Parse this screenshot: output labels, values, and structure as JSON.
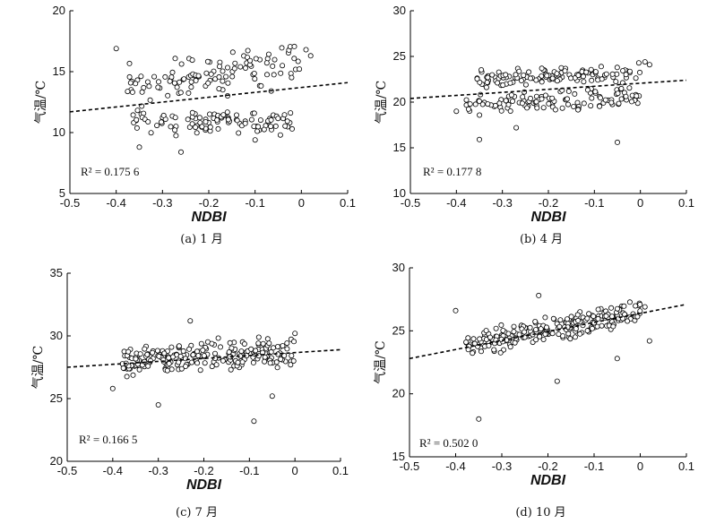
{
  "chart_data": [
    {
      "type": "scatter",
      "caption": "(a) 1 月",
      "xlabel": "NDBI",
      "ylabel": "气温/℃",
      "xlim": [
        -0.5,
        0.1
      ],
      "ylim": [
        5,
        20
      ],
      "xticks": [
        "-0.5",
        "-0.4",
        "-0.3",
        "-0.2",
        "-0.1",
        "0",
        "0.1"
      ],
      "yticks": [
        "5",
        "10",
        "15",
        "20"
      ],
      "r2_label": "R² = 0.175 6",
      "trend": {
        "x": [
          -0.5,
          0.1
        ],
        "y": [
          11.7,
          14.1
        ]
      },
      "clusters": [
        {
          "x_range": [
            -0.38,
            0.0
          ],
          "y_center": 14.8,
          "y_spread": 1.5,
          "count": 110,
          "slope": 5
        },
        {
          "x_range": [
            -0.37,
            -0.02
          ],
          "y_center": 10.8,
          "y_spread": 0.9,
          "count": 100,
          "slope": 0
        }
      ],
      "extra_points": [
        [
          -0.4,
          16.9
        ],
        [
          -0.35,
          8.8
        ],
        [
          -0.26,
          8.4
        ],
        [
          -0.1,
          9.4
        ],
        [
          0.02,
          16.3
        ],
        [
          0.01,
          16.8
        ]
      ],
      "seed": 11
    },
    {
      "type": "scatter",
      "caption": "(b) 4 月",
      "xlabel": "NDBI",
      "ylabel": "气温/℃",
      "xlim": [
        -0.5,
        0.1
      ],
      "ylim": [
        10,
        30
      ],
      "xticks": [
        "-0.5",
        "-0.4",
        "-0.3",
        "-0.2",
        "-0.1",
        "0",
        "0.1"
      ],
      "yticks": [
        "10",
        "15",
        "20",
        "25",
        "30"
      ],
      "r2_label": "R² = 0.177 8",
      "trend": {
        "x": [
          -0.5,
          0.1
        ],
        "y": [
          20.4,
          22.4
        ]
      },
      "clusters": [
        {
          "x_range": [
            -0.36,
            0.0
          ],
          "y_center": 22.9,
          "y_spread": 0.9,
          "count": 120,
          "slope": 2
        },
        {
          "x_range": [
            -0.38,
            0.0
          ],
          "y_center": 20.1,
          "y_spread": 1.0,
          "count": 110,
          "slope": 2
        }
      ],
      "extra_points": [
        [
          -0.35,
          15.9
        ],
        [
          -0.05,
          15.6
        ],
        [
          -0.4,
          19.0
        ],
        [
          -0.27,
          17.2
        ],
        [
          0.02,
          24.1
        ],
        [
          0.01,
          24.4
        ]
      ],
      "seed": 23
    },
    {
      "type": "scatter",
      "caption": "(c) 7 月",
      "xlabel": "NDBI",
      "ylabel": "气温/℃",
      "xlim": [
        -0.5,
        0.1
      ],
      "ylim": [
        20,
        35
      ],
      "xticks": [
        "-0.5",
        "-0.4",
        "-0.3",
        "-0.2",
        "-0.1",
        "0",
        "0.1"
      ],
      "yticks": [
        "20",
        "25",
        "30",
        "35"
      ],
      "r2_label": "R² = 0.166 5",
      "trend": {
        "x": [
          -0.5,
          0.1
        ],
        "y": [
          27.5,
          28.9
        ]
      },
      "clusters": [
        {
          "x_range": [
            -0.38,
            0.0
          ],
          "y_center": 28.3,
          "y_spread": 1.0,
          "count": 230,
          "slope": 2
        }
      ],
      "extra_points": [
        [
          -0.09,
          23.2
        ],
        [
          -0.3,
          24.5
        ],
        [
          -0.23,
          31.2
        ],
        [
          -0.4,
          25.8
        ],
        [
          0.0,
          30.2
        ],
        [
          -0.05,
          25.2
        ]
      ],
      "seed": 37
    },
    {
      "type": "scatter",
      "caption": "(d) 10 月",
      "xlabel": "NDBI",
      "ylabel": "气温/℃",
      "xlim": [
        -0.5,
        0.1
      ],
      "ylim": [
        15,
        30
      ],
      "xticks": [
        "-0.5",
        "-0.4",
        "-0.3",
        "-0.2",
        "-0.1",
        "0",
        "0.1"
      ],
      "yticks": [
        "15",
        "20",
        "25",
        "30"
      ],
      "r2_label": "R² = 0.502 0",
      "trend": {
        "x": [
          -0.5,
          0.1
        ],
        "y": [
          22.8,
          27.1
        ]
      },
      "clusters": [
        {
          "x_range": [
            -0.38,
            0.0
          ],
          "y_center": 25.2,
          "y_spread": 0.9,
          "count": 230,
          "slope": 7
        }
      ],
      "extra_points": [
        [
          -0.35,
          18.0
        ],
        [
          -0.18,
          21.0
        ],
        [
          -0.22,
          27.8
        ],
        [
          -0.4,
          26.6
        ],
        [
          -0.05,
          22.8
        ],
        [
          0.02,
          24.2
        ],
        [
          0.01,
          26.9
        ]
      ],
      "seed": 53
    }
  ]
}
